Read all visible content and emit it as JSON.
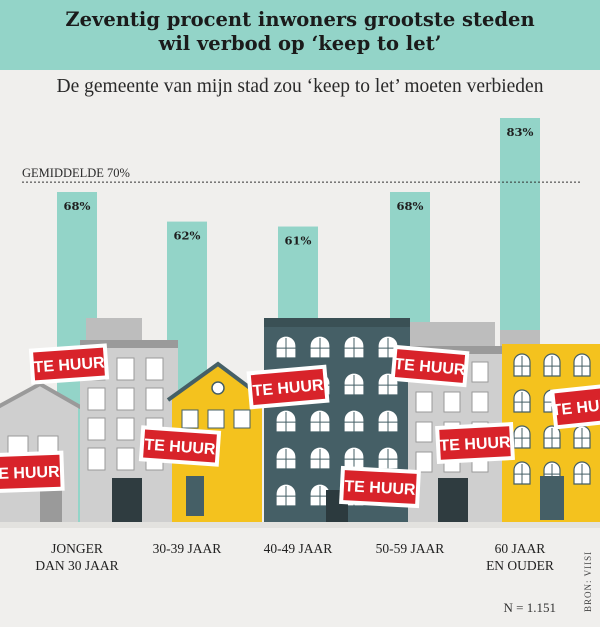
{
  "header": {
    "title_line1": "Zeventig procent inwoners grootste steden",
    "title_line2": "wil verbod op ‘keep to let’"
  },
  "subtitle": "De gemeente van mijn stad zou ‘keep to let’ moeten verbieden",
  "chart_data": {
    "type": "bar",
    "categories": [
      [
        "JONGER",
        "DAN 30 JAAR"
      ],
      [
        "30-39 JAAR"
      ],
      [
        "40-49 JAAR"
      ],
      [
        "50-59 JAAR"
      ],
      [
        "60 JAAR",
        "EN OUDER"
      ]
    ],
    "values": [
      68,
      62,
      61,
      68,
      83
    ],
    "value_labels": [
      "68%",
      "62%",
      "61%",
      "68%",
      "83%"
    ],
    "reference_line": {
      "label": "GEMIDDELDE 70%",
      "value": 70,
      "style": "dashed"
    },
    "ylim": [
      0,
      100
    ],
    "bar_color": "#93d4c8",
    "xlabel": "",
    "ylabel": ""
  },
  "signs": [
    "TE HUUR",
    "TE HUUR",
    "TE HUUR",
    "TE HUUR",
    "TE HUUR",
    "TE HUUR",
    "TE HUUR",
    "TE HUUR"
  ],
  "colors": {
    "sign_red": "#d8232a",
    "building_gray": "#d2d2d2",
    "building_dark": "#455f66",
    "building_yellow": "#f4c21e"
  },
  "footer": {
    "n": "N = 1.151",
    "source": "BRON: VIISI"
  }
}
